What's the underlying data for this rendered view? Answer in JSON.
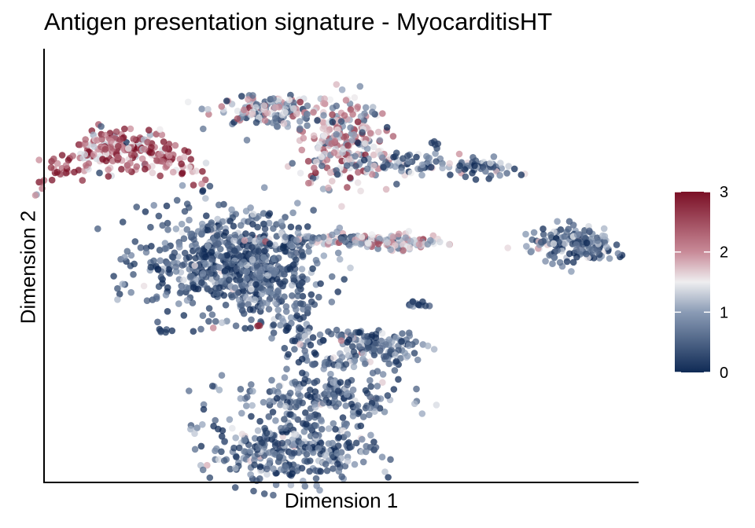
{
  "chart_data": {
    "type": "scatter",
    "title": "Antigen presentation signature - MyocarditisHT",
    "xlabel": "Dimension 1",
    "ylabel": "Dimension 2",
    "x_ticks": "none",
    "y_ticks": "none",
    "grid": false,
    "point_alpha": 0.75,
    "color_scale": {
      "min": 0,
      "max": 3,
      "ticks": [
        0,
        1,
        2,
        3
      ],
      "stops": [
        {
          "value": 0,
          "color": "#0f2a55"
        },
        {
          "value": 1,
          "color": "#8a9bb5"
        },
        {
          "value": 1.5,
          "color": "#eeeef0"
        },
        {
          "value": 2,
          "color": "#c88a98"
        },
        {
          "value": 3,
          "color": "#7a0f25"
        }
      ]
    },
    "legend_position": "right",
    "clusters": [
      {
        "x": 1.2,
        "y": 7.8,
        "sx": 0.7,
        "sy": 0.25,
        "bend": 0.55,
        "n": 260,
        "mean": 2.3,
        "sd": 0.75
      },
      {
        "x": 3.6,
        "y": 8.7,
        "sx": 0.45,
        "sy": 0.18,
        "bend": 0,
        "n": 140,
        "mean": 1.2,
        "sd": 0.65
      },
      {
        "x": 5.0,
        "y": 8.0,
        "sx": 0.38,
        "sy": 0.55,
        "bend": 0,
        "n": 240,
        "mean": 1.5,
        "sd": 0.75
      },
      {
        "x": 6.2,
        "y": 7.4,
        "sx": 0.55,
        "sy": 0.15,
        "bend": 0,
        "n": 80,
        "mean": 0.7,
        "sd": 0.6
      },
      {
        "x": 7.4,
        "y": 7.3,
        "sx": 0.3,
        "sy": 0.12,
        "bend": 0,
        "n": 45,
        "mean": 0.6,
        "sd": 0.6
      },
      {
        "x": 6.6,
        "y": 7.9,
        "sx": 0.05,
        "sy": 0.05,
        "bend": 0,
        "n": 5,
        "mean": 0.3,
        "sd": 0.3
      },
      {
        "x": 3.0,
        "y": 5.1,
        "sx": 0.75,
        "sy": 0.6,
        "bend": 0,
        "n": 560,
        "mean": 0.4,
        "sd": 0.45
      },
      {
        "x": 3.7,
        "y": 4.4,
        "sx": 0.45,
        "sy": 0.45,
        "bend": 0,
        "n": 150,
        "mean": 0.45,
        "sd": 0.45
      },
      {
        "x": 4.7,
        "y": 5.6,
        "sx": 0.7,
        "sy": 0.08,
        "bend": 0,
        "n": 110,
        "mean": 0.9,
        "sd": 0.7
      },
      {
        "x": 6.0,
        "y": 5.55,
        "sx": 0.4,
        "sy": 0.1,
        "bend": 0,
        "n": 80,
        "mean": 1.6,
        "sd": 0.55
      },
      {
        "x": 6.3,
        "y": 4.05,
        "sx": 0.12,
        "sy": 0.06,
        "bend": 0,
        "n": 14,
        "mean": 0.5,
        "sd": 0.4
      },
      {
        "x": 9.1,
        "y": 5.5,
        "sx": 0.32,
        "sy": 0.22,
        "bend": 0,
        "n": 140,
        "mean": 0.5,
        "sd": 0.5
      },
      {
        "x": 8.4,
        "y": 5.5,
        "sx": 0.18,
        "sy": 0.1,
        "bend": 0,
        "n": 16,
        "mean": 0.8,
        "sd": 0.6
      },
      {
        "x": 1.9,
        "y": 3.4,
        "sx": 0.08,
        "sy": 0.05,
        "bend": 0,
        "n": 6,
        "mean": 0.2,
        "sd": 0.2
      },
      {
        "x": 4.3,
        "y": 3.35,
        "sx": 0.2,
        "sy": 0.35,
        "bend": 0,
        "n": 50,
        "mean": 0.5,
        "sd": 0.5
      },
      {
        "x": 5.7,
        "y": 3.0,
        "sx": 0.35,
        "sy": 0.2,
        "bend": 0,
        "n": 110,
        "mean": 0.6,
        "sd": 0.55
      },
      {
        "x": 5.1,
        "y": 3.3,
        "sx": 0.3,
        "sy": 0.06,
        "bend": 0,
        "n": 30,
        "mean": 0.6,
        "sd": 0.5
      },
      {
        "x": 5.1,
        "y": 2.7,
        "sx": 0.35,
        "sy": 0.08,
        "bend": 0,
        "n": 30,
        "mean": 0.6,
        "sd": 0.5
      },
      {
        "x": 4.6,
        "y": 1.9,
        "sx": 0.75,
        "sy": 0.3,
        "bend": 0,
        "n": 180,
        "mean": 0.5,
        "sd": 0.5
      },
      {
        "x": 4.1,
        "y": 0.65,
        "sx": 0.72,
        "sy": 0.4,
        "bend": 0,
        "n": 330,
        "mean": 0.55,
        "sd": 0.5
      },
      {
        "x": 3.55,
        "y": 3.55,
        "sx": 0.03,
        "sy": 0.03,
        "bend": 0,
        "n": 3,
        "mean": 2.5,
        "sd": 0.3
      }
    ],
    "xlim": [
      0,
      10
    ],
    "ylim": [
      0,
      10
    ]
  }
}
